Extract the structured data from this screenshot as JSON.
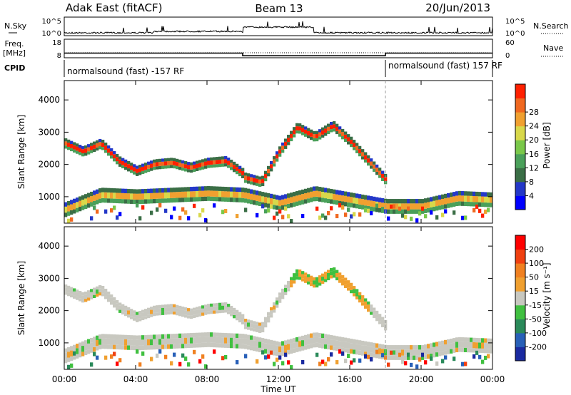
{
  "header": {
    "station": "Adak East (fitACF)",
    "beam": "Beam 13",
    "date": "20/Jun/2013"
  },
  "top_panels": {
    "nsky_label": "N.Sky",
    "nsky_ticks": [
      "10^5",
      "10^0"
    ],
    "nsearch_label": "N.Search",
    "freq_label_1": "Freq.",
    "freq_label_2": "[MHz]",
    "freq_ticks": [
      "18",
      "8"
    ],
    "nave_label": "Nave",
    "nave_ticks": [
      "60",
      "0"
    ],
    "cpid_label": "CPID",
    "cpid_segments": [
      {
        "text": "normalsound (fast) -157 RF",
        "start_hour": 0,
        "end_hour": 18
      },
      {
        "text": "normalsound (fast) 157 RF",
        "start_hour": 18,
        "end_hour": 24
      }
    ],
    "freq_series": {
      "hours": [
        0,
        10,
        10,
        18,
        18,
        24
      ],
      "mhz": [
        10.5,
        10.5,
        9.1,
        9.1,
        10.5,
        10.5
      ]
    }
  },
  "chart_data": [
    {
      "type": "heatmap",
      "name": "Power",
      "ylabel": "Slant Range [km]",
      "ylim": [
        180,
        4600
      ],
      "yticks": [
        1000,
        2000,
        3000,
        4000
      ],
      "colorbar_label": "Power [dB]",
      "colorbar_ticks": [
        "4",
        "8",
        "12",
        "16",
        "20",
        "24",
        "28"
      ],
      "colorbar_colors": [
        "#0000ff",
        "#2438c8",
        "#3a6e46",
        "#4aa05a",
        "#7ac84a",
        "#d8d84a",
        "#f0a030",
        "#f06820",
        "#ff2000"
      ],
      "features": [
        {
          "hours": [
            0,
            1,
            2,
            3,
            4,
            5,
            6,
            7,
            8,
            9,
            10
          ],
          "range_km": [
            2650,
            2400,
            2650,
            2100,
            1800,
            2000,
            2050,
            1900,
            2050,
            2100,
            1700
          ],
          "level": "high"
        },
        {
          "hours": [
            10,
            11,
            12,
            13,
            14,
            15,
            16,
            17,
            18
          ],
          "range_km": [
            1600,
            1450,
            2400,
            3150,
            2850,
            3200,
            2700,
            2100,
            1500
          ],
          "level": "high"
        },
        {
          "hours": [
            0,
            2,
            4,
            6,
            8,
            10,
            12,
            14,
            16,
            18,
            20,
            22,
            24
          ],
          "range_km": [
            600,
            1050,
            1000,
            1050,
            1100,
            1050,
            800,
            1100,
            900,
            700,
            700,
            950,
            900
          ],
          "level": "mid"
        }
      ]
    },
    {
      "type": "heatmap",
      "name": "Velocity",
      "ylabel": "Slant Range [km]",
      "ylim": [
        180,
        4600
      ],
      "yticks": [
        1000,
        2000,
        3000,
        4000
      ],
      "colorbar_label": "Velocity [m s⁻¹]",
      "colorbar_ticks": [
        "200",
        "100",
        "50",
        "15",
        "-15",
        "-50",
        "-100",
        "-200"
      ],
      "colorbar_colors": [
        "#1a2aa0",
        "#2860b8",
        "#2a8a5a",
        "#40c040",
        "#c8c8c0",
        "#f0a030",
        "#f08020",
        "#f04010",
        "#ff0000"
      ]
    }
  ],
  "xaxis": {
    "ticks": [
      "00:00",
      "04:00",
      "08:00",
      "12:00",
      "16:00",
      "20:00",
      "00:00"
    ],
    "label": "Time UT"
  }
}
